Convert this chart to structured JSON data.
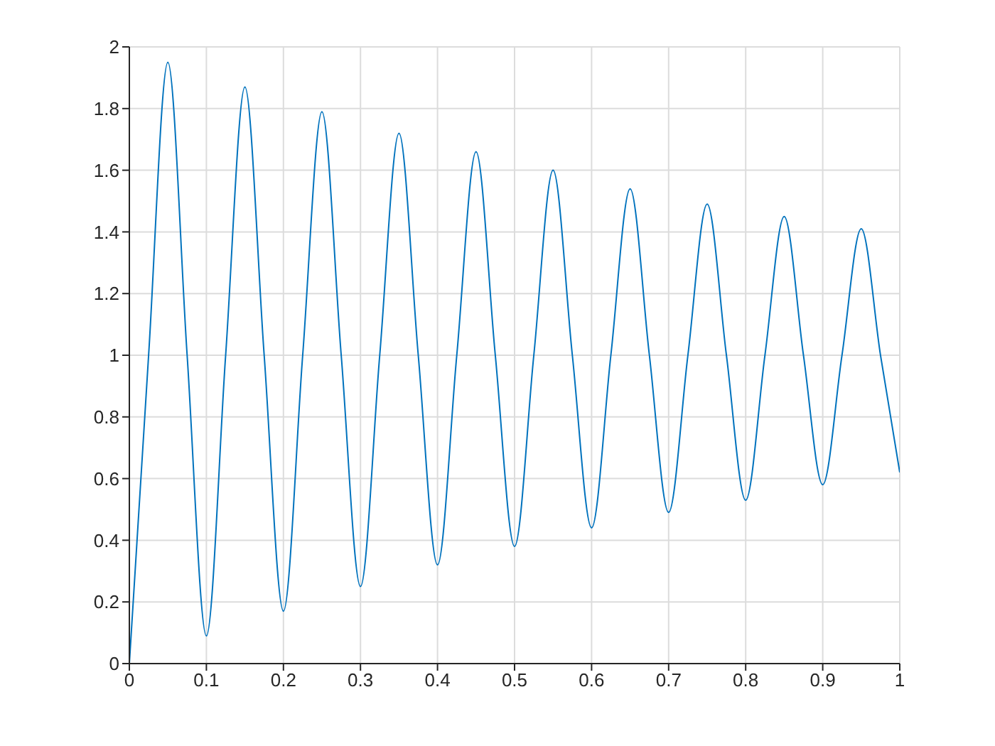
{
  "chart_data": {
    "type": "line",
    "x": [
      0,
      0.025,
      0.05,
      0.075,
      0.1,
      0.125,
      0.15,
      0.175,
      0.2,
      0.225,
      0.25,
      0.275,
      0.3,
      0.325,
      0.35,
      0.375,
      0.4,
      0.425,
      0.45,
      0.475,
      0.5,
      0.525,
      0.55,
      0.575,
      0.6,
      0.625,
      0.65,
      0.675,
      0.7,
      0.725,
      0.75,
      0.775,
      0.8,
      0.825,
      0.85,
      0.875,
      0.9,
      0.925,
      0.95,
      0.975,
      1
    ],
    "series": [
      {
        "color": "#0072bd",
        "values": [
          0,
          1,
          1.95,
          1,
          0.09,
          1,
          1.87,
          1,
          0.17,
          1,
          1.79,
          1,
          0.25,
          1,
          1.72,
          1,
          0.32,
          1,
          1.66,
          1,
          0.38,
          1,
          1.6,
          1,
          0.44,
          1,
          1.54,
          1,
          0.49,
          1,
          1.49,
          1,
          0.53,
          1,
          1.45,
          1,
          0.58,
          1,
          1.41,
          1,
          0.62
        ]
      }
    ],
    "xlim": [
      0,
      1
    ],
    "xticks": [
      0,
      0.1,
      0.2,
      0.3,
      0.4,
      0.5,
      0.6,
      0.7,
      0.8,
      0.9,
      1
    ],
    "ylim": [
      0,
      2
    ],
    "yticks": [
      0,
      0.2,
      0.4,
      0.6,
      0.8,
      1,
      1.2,
      1.4,
      1.6,
      1.8,
      2
    ],
    "grid": true,
    "marker": "none",
    "line_style": "solid"
  }
}
